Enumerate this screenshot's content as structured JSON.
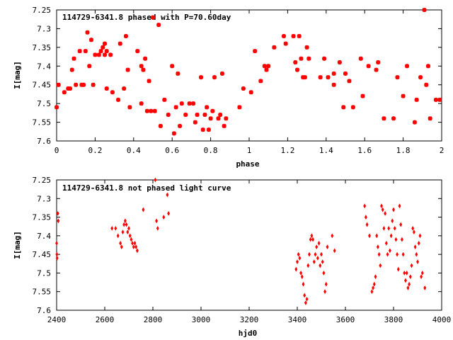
{
  "chart_data": [
    {
      "type": "scatter",
      "title": "114729-6341.8 phased with P=70.60day",
      "xlabel": "phase",
      "ylabel": "I[mag]",
      "xlim": [
        0,
        2
      ],
      "ylim": [
        7.6,
        7.25
      ],
      "y_reversed": true,
      "xticks": [
        "0",
        "0.2",
        "0.4",
        "0.6",
        "0.8",
        "1",
        "1.2",
        "1.4",
        "1.6",
        "1.8",
        "2"
      ],
      "yticks": [
        "7.25",
        "7.3",
        "7.35",
        "7.4",
        "7.45",
        "7.5",
        "7.55",
        "7.6"
      ],
      "grid": false,
      "marker_color": "#ff0000",
      "series": [
        {
          "points": [
            [
              0.0,
              7.51
            ],
            [
              0.01,
              7.45
            ],
            [
              0.04,
              7.47
            ],
            [
              0.06,
              7.46
            ],
            [
              0.07,
              7.46
            ],
            [
              0.08,
              7.41
            ],
            [
              0.09,
              7.38
            ],
            [
              0.1,
              7.45
            ],
            [
              0.12,
              7.36
            ],
            [
              0.13,
              7.45
            ],
            [
              0.14,
              7.45
            ],
            [
              0.15,
              7.36
            ],
            [
              0.16,
              7.31
            ],
            [
              0.17,
              7.4
            ],
            [
              0.18,
              7.33
            ],
            [
              0.19,
              7.45
            ],
            [
              0.2,
              7.37
            ],
            [
              0.22,
              7.37
            ],
            [
              0.23,
              7.36
            ],
            [
              0.24,
              7.35
            ],
            [
              0.25,
              7.34
            ],
            [
              0.25,
              7.37
            ],
            [
              0.26,
              7.36
            ],
            [
              0.26,
              7.46
            ],
            [
              0.28,
              7.37
            ],
            [
              0.29,
              7.47
            ],
            [
              0.32,
              7.49
            ],
            [
              0.33,
              7.34
            ],
            [
              0.35,
              7.46
            ],
            [
              0.36,
              7.32
            ],
            [
              0.37,
              7.41
            ],
            [
              0.38,
              7.51
            ],
            [
              0.42,
              7.36
            ],
            [
              0.44,
              7.5
            ],
            [
              0.44,
              7.4
            ],
            [
              0.45,
              7.41
            ],
            [
              0.46,
              7.38
            ],
            [
              0.47,
              7.52
            ],
            [
              0.48,
              7.44
            ],
            [
              0.49,
              7.52
            ],
            [
              0.5,
              7.27
            ],
            [
              0.51,
              7.52
            ],
            [
              0.53,
              7.29
            ],
            [
              0.54,
              7.56
            ],
            [
              0.56,
              7.49
            ],
            [
              0.58,
              7.53
            ],
            [
              0.6,
              7.4
            ],
            [
              0.61,
              7.58
            ],
            [
              0.62,
              7.51
            ],
            [
              0.63,
              7.42
            ],
            [
              0.64,
              7.56
            ],
            [
              0.65,
              7.5
            ],
            [
              0.67,
              7.53
            ],
            [
              0.69,
              7.5
            ],
            [
              0.71,
              7.5
            ],
            [
              0.72,
              7.55
            ],
            [
              0.73,
              7.53
            ],
            [
              0.75,
              7.43
            ],
            [
              0.76,
              7.57
            ],
            [
              0.77,
              7.53
            ],
            [
              0.78,
              7.51
            ],
            [
              0.79,
              7.57
            ],
            [
              0.8,
              7.54
            ],
            [
              0.81,
              7.52
            ],
            [
              0.82,
              7.43
            ],
            [
              0.84,
              7.54
            ],
            [
              0.85,
              7.53
            ],
            [
              0.86,
              7.42
            ],
            [
              0.87,
              7.56
            ],
            [
              0.88,
              7.54
            ],
            [
              0.95,
              7.51
            ],
            [
              0.97,
              7.46
            ],
            [
              1.01,
              7.47
            ],
            [
              1.03,
              7.36
            ],
            [
              1.06,
              7.44
            ],
            [
              1.08,
              7.4
            ],
            [
              1.09,
              7.41
            ],
            [
              1.1,
              7.4
            ],
            [
              1.13,
              7.35
            ],
            [
              1.18,
              7.32
            ],
            [
              1.19,
              7.34
            ],
            [
              1.23,
              7.32
            ],
            [
              1.24,
              7.39
            ],
            [
              1.25,
              7.41
            ],
            [
              1.26,
              7.32
            ],
            [
              1.27,
              7.38
            ],
            [
              1.28,
              7.43
            ],
            [
              1.29,
              7.43
            ],
            [
              1.3,
              7.35
            ],
            [
              1.31,
              7.38
            ],
            [
              1.37,
              7.43
            ],
            [
              1.39,
              7.38
            ],
            [
              1.41,
              7.43
            ],
            [
              1.44,
              7.45
            ],
            [
              1.44,
              7.42
            ],
            [
              1.47,
              7.39
            ],
            [
              1.49,
              7.51
            ],
            [
              1.5,
              7.42
            ],
            [
              1.52,
              7.44
            ],
            [
              1.54,
              7.51
            ],
            [
              1.58,
              7.38
            ],
            [
              1.59,
              7.48
            ],
            [
              1.62,
              7.4
            ],
            [
              1.66,
              7.41
            ],
            [
              1.67,
              7.39
            ],
            [
              1.7,
              7.54
            ],
            [
              1.75,
              7.54
            ],
            [
              1.77,
              7.43
            ],
            [
              1.8,
              7.48
            ],
            [
              1.82,
              7.4
            ],
            [
              1.86,
              7.55
            ],
            [
              1.87,
              7.49
            ],
            [
              1.89,
              7.43
            ],
            [
              1.91,
              7.25
            ],
            [
              1.92,
              7.45
            ],
            [
              1.93,
              7.4
            ],
            [
              1.94,
              7.54
            ],
            [
              1.97,
              7.49
            ],
            [
              1.99,
              7.49
            ]
          ]
        }
      ]
    },
    {
      "type": "scatter",
      "title": "114729-6341.8 not phased light curve",
      "xlabel": "hjd0",
      "ylabel": "I[mag]",
      "xlim": [
        2400,
        4000
      ],
      "ylim": [
        7.6,
        7.25
      ],
      "y_reversed": true,
      "xticks": [
        "2400",
        "2600",
        "2800",
        "3000",
        "3200",
        "3400",
        "3600",
        "3800",
        "4000"
      ],
      "yticks": [
        "7.25",
        "7.3",
        "7.35",
        "7.4",
        "7.45",
        "7.5",
        "7.55",
        "7.6"
      ],
      "grid": false,
      "marker_color": "#ff0000",
      "series": [
        {
          "points": [
            [
              2400,
              7.42
            ],
            [
              2401,
              7.45
            ],
            [
              2402,
              7.46
            ],
            [
              2405,
              7.34
            ],
            [
              2407,
              7.36
            ],
            [
              2630,
              7.38
            ],
            [
              2645,
              7.38
            ],
            [
              2655,
              7.4
            ],
            [
              2665,
              7.42
            ],
            [
              2670,
              7.43
            ],
            [
              2675,
              7.39
            ],
            [
              2680,
              7.37
            ],
            [
              2685,
              7.36
            ],
            [
              2690,
              7.37
            ],
            [
              2695,
              7.39
            ],
            [
              2700,
              7.38
            ],
            [
              2705,
              7.4
            ],
            [
              2710,
              7.41
            ],
            [
              2715,
              7.42
            ],
            [
              2720,
              7.43
            ],
            [
              2725,
              7.42
            ],
            [
              2730,
              7.43
            ],
            [
              2735,
              7.44
            ],
            [
              2760,
              7.33
            ],
            [
              2810,
              7.25
            ],
            [
              2815,
              7.36
            ],
            [
              2820,
              7.38
            ],
            [
              2845,
              7.35
            ],
            [
              2860,
              7.29
            ],
            [
              2865,
              7.34
            ],
            [
              3395,
              7.49
            ],
            [
              3400,
              7.47
            ],
            [
              3405,
              7.45
            ],
            [
              3410,
              7.46
            ],
            [
              3415,
              7.5
            ],
            [
              3420,
              7.51
            ],
            [
              3425,
              7.53
            ],
            [
              3430,
              7.56
            ],
            [
              3435,
              7.58
            ],
            [
              3440,
              7.57
            ],
            [
              3445,
              7.48
            ],
            [
              3450,
              7.45
            ],
            [
              3455,
              7.41
            ],
            [
              3460,
              7.4
            ],
            [
              3465,
              7.41
            ],
            [
              3470,
              7.47
            ],
            [
              3475,
              7.45
            ],
            [
              3480,
              7.43
            ],
            [
              3485,
              7.46
            ],
            [
              3490,
              7.42
            ],
            [
              3495,
              7.48
            ],
            [
              3500,
              7.45
            ],
            [
              3505,
              7.47
            ],
            [
              3510,
              7.5
            ],
            [
              3515,
              7.55
            ],
            [
              3520,
              7.53
            ],
            [
              3525,
              7.43
            ],
            [
              3545,
              7.4
            ],
            [
              3555,
              7.44
            ],
            [
              3680,
              7.32
            ],
            [
              3685,
              7.35
            ],
            [
              3690,
              7.37
            ],
            [
              3700,
              7.4
            ],
            [
              3710,
              7.55
            ],
            [
              3715,
              7.54
            ],
            [
              3720,
              7.53
            ],
            [
              3725,
              7.51
            ],
            [
              3730,
              7.4
            ],
            [
              3735,
              7.43
            ],
            [
              3740,
              7.45
            ],
            [
              3745,
              7.48
            ],
            [
              3750,
              7.32
            ],
            [
              3755,
              7.33
            ],
            [
              3760,
              7.38
            ],
            [
              3765,
              7.34
            ],
            [
              3770,
              7.42
            ],
            [
              3775,
              7.45
            ],
            [
              3780,
              7.38
            ],
            [
              3785,
              7.44
            ],
            [
              3790,
              7.4
            ],
            [
              3795,
              7.36
            ],
            [
              3800,
              7.33
            ],
            [
              3805,
              7.38
            ],
            [
              3810,
              7.41
            ],
            [
              3815,
              7.45
            ],
            [
              3820,
              7.49
            ],
            [
              3825,
              7.32
            ],
            [
              3830,
              7.37
            ],
            [
              3835,
              7.41
            ],
            [
              3840,
              7.45
            ],
            [
              3845,
              7.5
            ],
            [
              3850,
              7.52
            ],
            [
              3855,
              7.5
            ],
            [
              3860,
              7.54
            ],
            [
              3865,
              7.53
            ],
            [
              3870,
              7.51
            ],
            [
              3875,
              7.48
            ],
            [
              3880,
              7.38
            ],
            [
              3885,
              7.39
            ],
            [
              3890,
              7.43
            ],
            [
              3895,
              7.45
            ],
            [
              3900,
              7.47
            ],
            [
              3905,
              7.42
            ],
            [
              3910,
              7.4
            ],
            [
              3915,
              7.51
            ],
            [
              3920,
              7.5
            ],
            [
              3930,
              7.54
            ]
          ]
        }
      ]
    }
  ]
}
